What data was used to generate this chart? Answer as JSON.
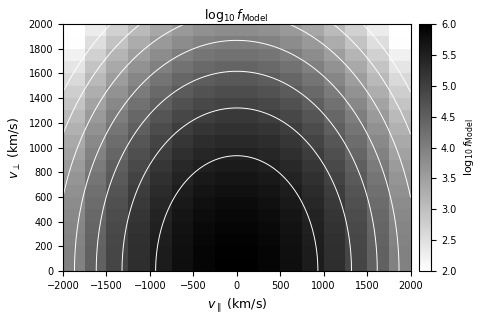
{
  "vpar_min": -2000,
  "vpar_max": 2000,
  "vperp_min": 0,
  "vperp_max": 2000,
  "log_fmin": 2.0,
  "log_fmax": 6.0,
  "title": "$\\log_{10} f_{\\mathrm{Model}}$",
  "xlabel": "$v_{\\parallel}$ (km/s)",
  "ylabel": "$v_{\\perp}$ (km/s)",
  "cbar_label": "$\\log_{10} f_{\\mathrm{Model}}$",
  "cbar_ticks": [
    2,
    2.5,
    3,
    3.5,
    4,
    4.5,
    5,
    5.5,
    6
  ],
  "xticks": [
    -2000,
    -1500,
    -1000,
    -500,
    0,
    500,
    1000,
    1500,
    2000
  ],
  "yticks": [
    0,
    200,
    400,
    600,
    800,
    1000,
    1200,
    1400,
    1600,
    1800,
    2000
  ],
  "vthk": 870,
  "vthperp": 870,
  "v0k": 0.0,
  "log_peak": 6.0,
  "colormap": "gray_r",
  "contour_levels": [
    2.5,
    3.0,
    3.5,
    4.0,
    4.5,
    5.0,
    5.5
  ],
  "bin_edges_par": [
    -2000,
    -1750,
    -1500,
    -1250,
    -1000,
    -750,
    -500,
    -250,
    0,
    250,
    500,
    750,
    1000,
    1250,
    1500,
    1750,
    2000
  ],
  "bin_edges_perp": [
    0,
    100,
    200,
    300,
    400,
    500,
    600,
    700,
    800,
    900,
    1000,
    1100,
    1200,
    1300,
    1400,
    1500,
    1600,
    1700,
    1800,
    1900,
    2000
  ]
}
